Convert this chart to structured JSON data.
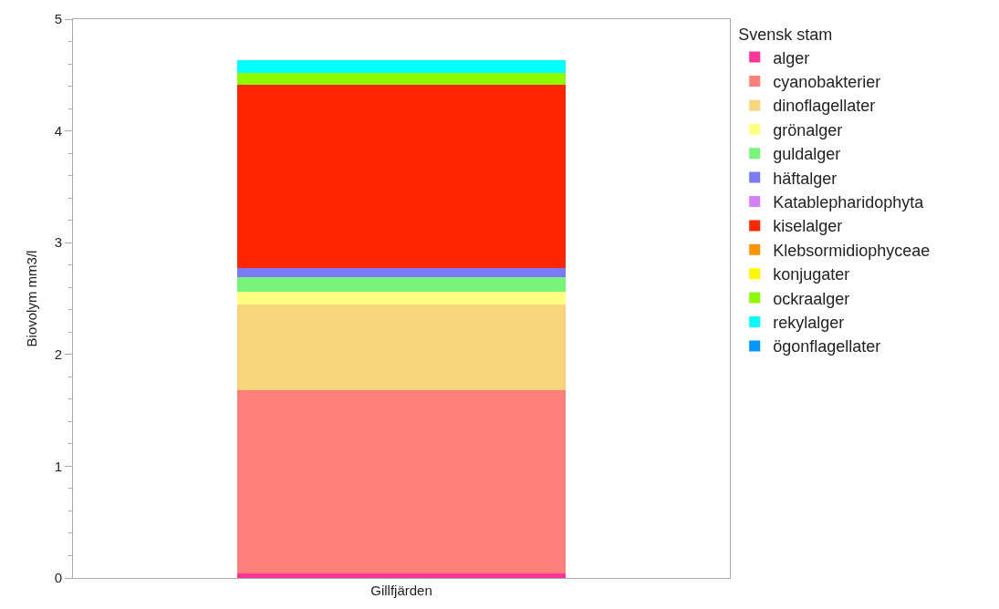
{
  "chart_data": {
    "type": "bar",
    "stacked": true,
    "ylabel": "Biovolym mm3/l",
    "legend_title": "Svensk stam",
    "legend": "right",
    "grid": false,
    "categories": [
      "Gillfjärden"
    ],
    "ylim": [
      0,
      5
    ],
    "yticks": [
      0,
      1,
      2,
      3,
      4,
      5
    ],
    "series": [
      {
        "name": "alger",
        "color": "#ff3399",
        "values": [
          0.04
        ]
      },
      {
        "name": "cyanobakterier",
        "color": "#ff7f7a",
        "values": [
          1.64
        ]
      },
      {
        "name": "dinoflagellater",
        "color": "#f8d47a",
        "values": [
          0.77
        ]
      },
      {
        "name": "grönalger",
        "color": "#ffff80",
        "values": [
          0.11
        ]
      },
      {
        "name": "guldalger",
        "color": "#77f57a",
        "values": [
          0.13
        ]
      },
      {
        "name": "häftalger",
        "color": "#7a7af5",
        "values": [
          0.08
        ]
      },
      {
        "name": "Katablepharidophyta",
        "color": "#d580f5",
        "values": [
          0
        ]
      },
      {
        "name": "kiselalger",
        "color": "#ff2600",
        "values": [
          1.64
        ]
      },
      {
        "name": "Klebsormidiophyceae",
        "color": "#ff9300",
        "values": [
          0
        ]
      },
      {
        "name": "konjugater",
        "color": "#fff700",
        "values": [
          0
        ]
      },
      {
        "name": "ockraalger",
        "color": "#8efa00",
        "values": [
          0.11
        ]
      },
      {
        "name": "rekylalger",
        "color": "#00fdff",
        "values": [
          0.11
        ]
      },
      {
        "name": "ögonflagellater",
        "color": "#0096ff",
        "values": [
          0
        ]
      }
    ]
  }
}
